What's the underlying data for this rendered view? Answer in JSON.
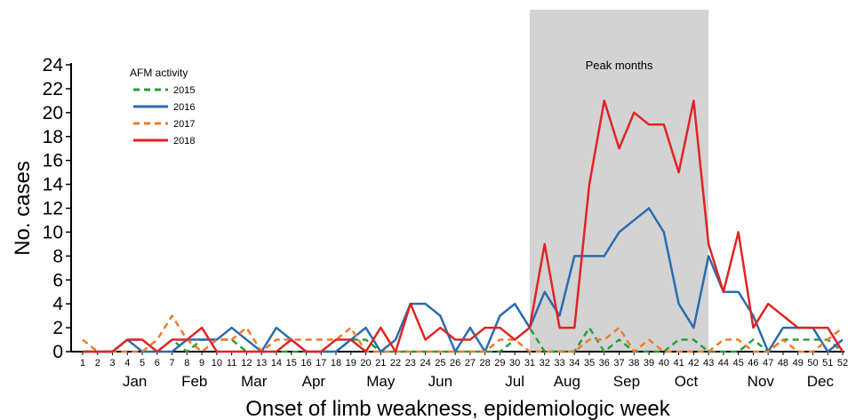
{
  "chart_data": {
    "type": "line",
    "xlabel": "Onset of limb weakness, epidemiologic week",
    "ylabel": "No. cases",
    "ylim": [
      0,
      24
    ],
    "yticks": [
      0,
      2,
      4,
      6,
      8,
      10,
      12,
      14,
      16,
      18,
      20,
      22,
      24
    ],
    "x": [
      1,
      2,
      3,
      4,
      5,
      6,
      7,
      8,
      9,
      10,
      11,
      12,
      13,
      14,
      15,
      16,
      17,
      18,
      19,
      20,
      21,
      22,
      23,
      24,
      25,
      26,
      27,
      28,
      29,
      30,
      31,
      32,
      33,
      34,
      35,
      36,
      37,
      38,
      39,
      40,
      41,
      42,
      43,
      44,
      45,
      46,
      47,
      48,
      49,
      50,
      51,
      52
    ],
    "months": [
      {
        "label": "Jan",
        "week": 4.5
      },
      {
        "label": "Feb",
        "week": 8.5
      },
      {
        "label": "Mar",
        "week": 12.5
      },
      {
        "label": "Apr",
        "week": 16.5
      },
      {
        "label": "May",
        "week": 21
      },
      {
        "label": "Jun",
        "week": 25
      },
      {
        "label": "Jul",
        "week": 30
      },
      {
        "label": "Aug",
        "week": 33.5
      },
      {
        "label": "Sep",
        "week": 37.5
      },
      {
        "label": "Oct",
        "week": 41.5
      },
      {
        "label": "Nov",
        "week": 46.5
      },
      {
        "label": "Dec",
        "week": 50.5
      }
    ],
    "legend_title": "AFM activity",
    "legend_position": "top-left",
    "annotation": {
      "label": "Peak months",
      "x_start_week": 31,
      "x_end_week": 43,
      "color": "#d3d3d3"
    },
    "series": [
      {
        "name": "2015",
        "color": "#2a9d3a",
        "dashed": true,
        "values": [
          0,
          0,
          0,
          1,
          1,
          0,
          1,
          0,
          1,
          1,
          1,
          0,
          0,
          0,
          0,
          0,
          0,
          0,
          1,
          1,
          0,
          0,
          0,
          0,
          0,
          0,
          0,
          0,
          0,
          1,
          2,
          0,
          0,
          0,
          2,
          0,
          1,
          0,
          0,
          0,
          1,
          1,
          0,
          0,
          0,
          1,
          0,
          1,
          1,
          1,
          1,
          0
        ]
      },
      {
        "name": "2016",
        "color": "#2b6cb0",
        "dashed": false,
        "values": [
          0,
          0,
          0,
          1,
          0,
          0,
          0,
          1,
          1,
          1,
          2,
          1,
          0,
          2,
          1,
          0,
          0,
          0,
          1,
          2,
          0,
          1,
          4,
          4,
          3,
          0,
          2,
          0,
          3,
          4,
          2,
          5,
          3,
          8,
          8,
          8,
          10,
          11,
          12,
          10,
          4,
          2,
          8,
          5,
          5,
          3,
          0,
          2,
          2,
          2,
          0,
          1
        ]
      },
      {
        "name": "2017",
        "color": "#f07a2a",
        "dashed": true,
        "values": [
          1,
          0,
          0,
          0,
          0,
          1,
          3,
          1,
          0,
          1,
          1,
          2,
          0,
          1,
          1,
          1,
          1,
          1,
          2,
          0,
          0,
          0,
          0,
          0,
          0,
          0,
          0,
          0,
          1,
          1,
          0,
          0,
          0,
          0,
          1,
          1,
          2,
          0,
          1,
          0,
          0,
          0,
          0,
          1,
          1,
          0,
          0,
          1,
          0,
          0,
          1,
          2
        ]
      },
      {
        "name": "2018",
        "color": "#e02424",
        "dashed": false,
        "values": [
          0,
          0,
          0,
          1,
          1,
          0,
          1,
          1,
          2,
          0,
          0,
          0,
          0,
          0,
          1,
          0,
          0,
          1,
          1,
          0,
          2,
          0,
          4,
          1,
          2,
          1,
          1,
          2,
          2,
          1,
          2,
          9,
          2,
          2,
          14,
          21,
          17,
          20,
          19,
          19,
          15,
          21,
          9,
          5,
          10,
          2,
          4,
          3,
          2,
          2,
          2,
          0
        ]
      }
    ]
  }
}
